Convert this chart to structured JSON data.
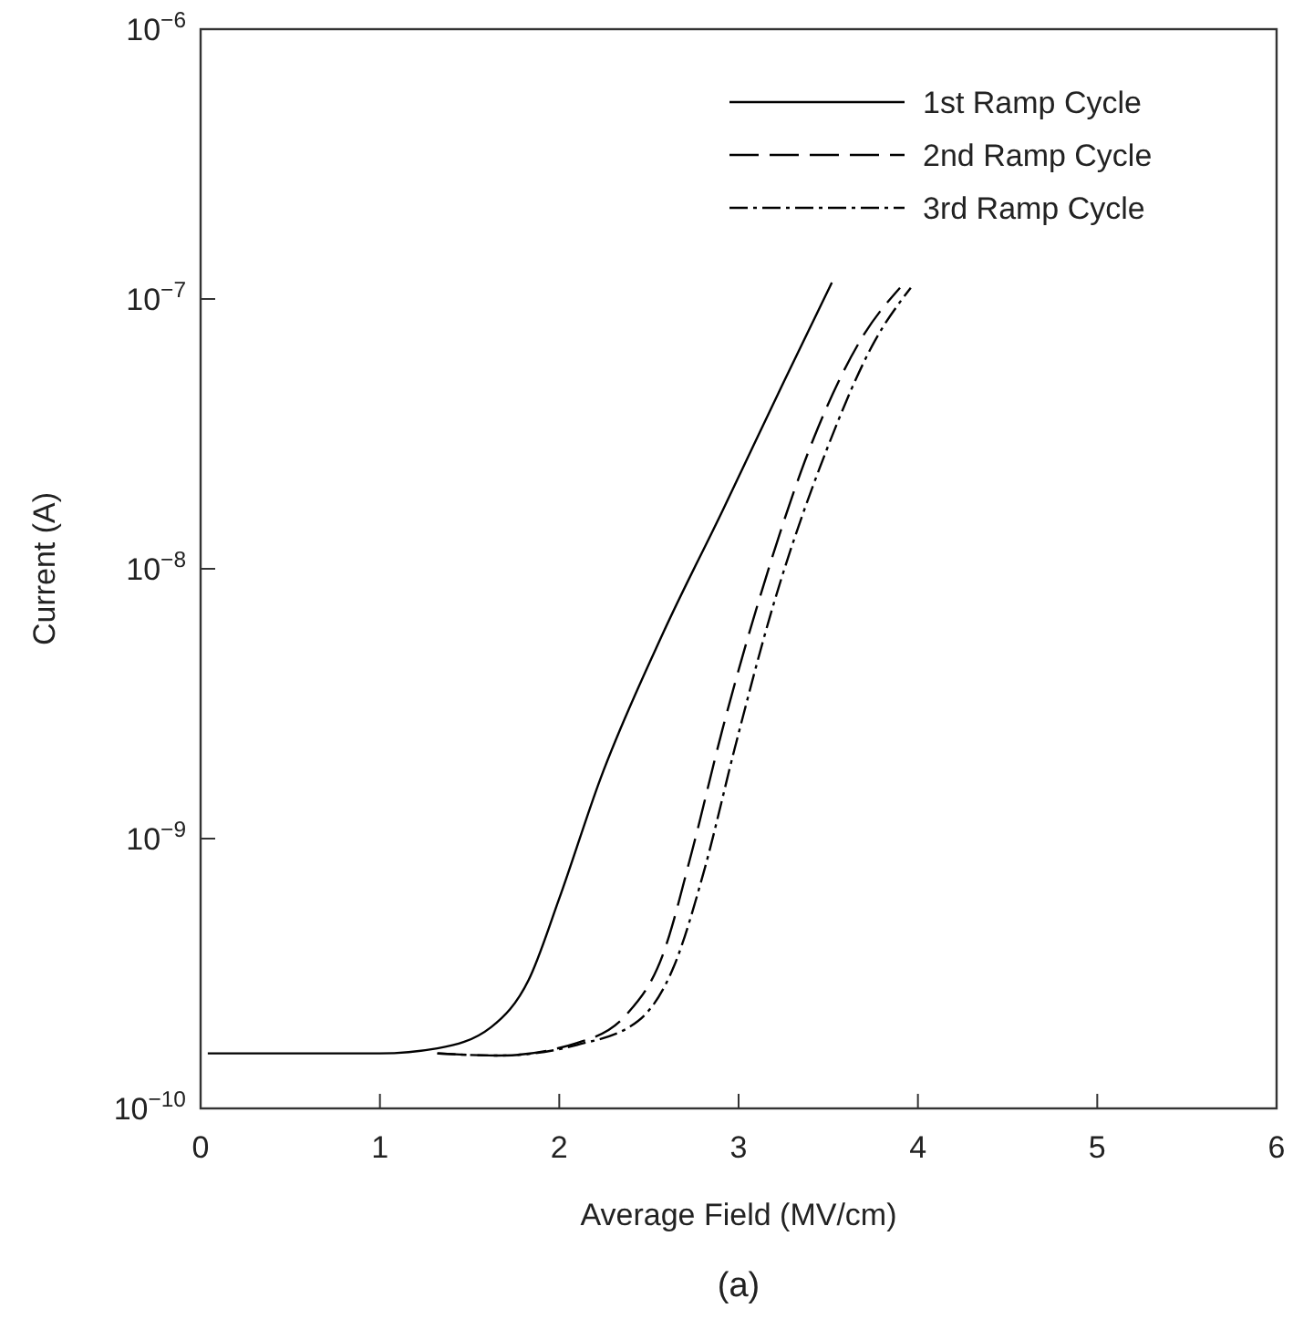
{
  "chart_data": {
    "type": "line",
    "title": "(a)",
    "xlabel": "Average Field (MV/cm)",
    "ylabel": "Current (A)",
    "xlim": [
      0,
      6
    ],
    "xticks": [
      0,
      1,
      2,
      3,
      4,
      5,
      6
    ],
    "ylim": [
      1e-10,
      1e-06
    ],
    "yticks": [
      {
        "value": 1e-10,
        "label": "10$^{−10}$"
      },
      {
        "value": 1e-09,
        "label": "10$^{−9}$"
      },
      {
        "value": 1e-08,
        "label": "10$^{−8}$"
      },
      {
        "value": 1e-07,
        "label": "10$^{−7}$"
      },
      {
        "value": 1e-06,
        "label": "10$^{−6}$"
      }
    ],
    "log": "y",
    "grid": false,
    "legend": "top right",
    "marker": "none",
    "series": [
      {
        "name": "1st Ramp Cycle",
        "color": "#000000",
        "line_style": "solid",
        "x": [
          0.04,
          1.0,
          1.32,
          1.62,
          1.83,
          2.0,
          2.23,
          2.58,
          2.91,
          3.25,
          3.52
        ],
        "values": [
          1.6e-10,
          1.6e-10,
          1.67e-10,
          2e-10,
          3e-10,
          6e-10,
          1.67e-09,
          5.8e-09,
          1.64e-08,
          4.9e-08,
          1.15e-07
        ]
      },
      {
        "name": "2nd Ramp Cycle",
        "color": "#000000",
        "line_style": "dashed",
        "x": [
          1.32,
          1.66,
          2.1,
          2.37,
          2.58,
          2.74,
          2.91,
          3.12,
          3.42,
          3.7,
          3.9
        ],
        "values": [
          1.6e-10,
          1.57e-10,
          1.75e-10,
          2.21e-10,
          3.75e-10,
          8.97e-10,
          2.54e-09,
          7.9e-09,
          3.06e-08,
          7.4e-08,
          1.1e-07
        ]
      },
      {
        "name": "3rd Ramp Cycle",
        "color": "#000000",
        "line_style": "dashdot",
        "x": [
          1.32,
          1.66,
          2.1,
          2.44,
          2.64,
          2.81,
          2.98,
          3.19,
          3.49,
          3.76,
          3.96
        ],
        "values": [
          1.6e-10,
          1.57e-10,
          1.72e-10,
          2.11e-10,
          3.37e-10,
          7.7e-10,
          2.18e-09,
          7.2e-09,
          2.75e-08,
          7e-08,
          1.1e-07
        ]
      }
    ]
  }
}
